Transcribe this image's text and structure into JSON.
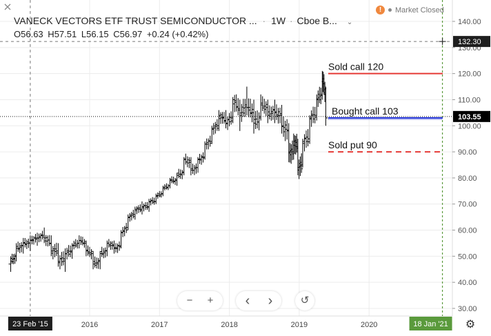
{
  "header": {
    "title": "VANECK VECTORS ETF TRUST SEMICONDUCTOR ...",
    "separator": "·",
    "interval": "1W",
    "exchange": "Cboe B...",
    "ohlc": {
      "o_label": "O",
      "o_value": "56.63",
      "h_label": "H",
      "h_value": "57.51",
      "l_label": "L",
      "l_value": "56.15",
      "c_label": "C",
      "c_value": "56.97",
      "change": "+0.24 (+0.42%)"
    }
  },
  "status": {
    "warning_icon": "!",
    "market": "Market Closed"
  },
  "annotations": [
    {
      "label": "Sold call 120",
      "level": 120,
      "color": "#e53935",
      "style": "solid"
    },
    {
      "label": "Bought call 103",
      "level": 103,
      "color": "#1e2fd6",
      "style": "solid"
    },
    {
      "label": "Sold put 90",
      "level": 90,
      "color": "#e53935",
      "style": "dashed"
    }
  ],
  "price_axis": {
    "ticks": [
      "140.00",
      "130.00",
      "120.00",
      "110.00",
      "100.00",
      "90.00",
      "80.00",
      "70.00",
      "60.00",
      "50.00",
      "40.00",
      "30.00"
    ],
    "crosshair_label": "132.30",
    "crosshair_value": 132.3,
    "last_price_label": "103.55",
    "last_price_value": 103.55
  },
  "time_axis": {
    "ticks": [
      "2016",
      "2017",
      "2018",
      "2019",
      "2020"
    ],
    "crosshair_date": "23 Feb '15",
    "projection_date": "18 Jan '21"
  },
  "colors": {
    "last_price_bg": "#000000",
    "crosshair_bg": "#1e1e1e",
    "projection_bg": "#5a9a3c",
    "bars": "#000000"
  },
  "nav": {
    "zoom_out": "−",
    "zoom_in": "+",
    "scroll_left": "‹",
    "scroll_right": "›",
    "reset": "↺"
  },
  "settings_icon": "⚙",
  "chart_data": {
    "type": "ohlc-bar",
    "symbol": "VANECK VECTORS ETF TRUST SEMICONDUCTOR",
    "interval": "1W",
    "ylim": [
      27,
      147
    ],
    "xlim": [
      2014.85,
      2021.18
    ],
    "x_crosshair": 2015.15,
    "x_projection": 2021.05,
    "series": [
      {
        "x": 2014.87,
        "o": 47,
        "h": 50,
        "l": 44,
        "c": 48
      },
      {
        "x": 2014.95,
        "o": 50,
        "h": 55,
        "l": 48,
        "c": 53
      },
      {
        "x": 2015.05,
        "o": 54,
        "h": 57,
        "l": 51,
        "c": 55
      },
      {
        "x": 2015.15,
        "o": 55,
        "h": 58,
        "l": 52,
        "c": 56
      },
      {
        "x": 2015.25,
        "o": 57,
        "h": 59,
        "l": 54,
        "c": 57
      },
      {
        "x": 2015.35,
        "o": 58,
        "h": 61,
        "l": 55,
        "c": 57
      },
      {
        "x": 2015.45,
        "o": 55,
        "h": 58,
        "l": 50,
        "c": 52
      },
      {
        "x": 2015.55,
        "o": 52,
        "h": 55,
        "l": 46,
        "c": 48
      },
      {
        "x": 2015.65,
        "o": 49,
        "h": 53,
        "l": 44,
        "c": 51
      },
      {
        "x": 2015.75,
        "o": 52,
        "h": 55,
        "l": 49,
        "c": 54
      },
      {
        "x": 2015.85,
        "o": 55,
        "h": 58,
        "l": 53,
        "c": 56
      },
      {
        "x": 2015.95,
        "o": 55,
        "h": 56,
        "l": 50,
        "c": 52
      },
      {
        "x": 2016.05,
        "o": 51,
        "h": 52,
        "l": 45,
        "c": 47
      },
      {
        "x": 2016.15,
        "o": 48,
        "h": 52,
        "l": 45,
        "c": 51
      },
      {
        "x": 2016.25,
        "o": 52,
        "h": 56,
        "l": 50,
        "c": 55
      },
      {
        "x": 2016.35,
        "o": 54,
        "h": 56,
        "l": 51,
        "c": 53
      },
      {
        "x": 2016.45,
        "o": 54,
        "h": 60,
        "l": 53,
        "c": 59
      },
      {
        "x": 2016.55,
        "o": 61,
        "h": 66,
        "l": 60,
        "c": 65
      },
      {
        "x": 2016.65,
        "o": 66,
        "h": 69,
        "l": 64,
        "c": 68
      },
      {
        "x": 2016.75,
        "o": 68,
        "h": 71,
        "l": 66,
        "c": 69
      },
      {
        "x": 2016.85,
        "o": 69,
        "h": 72,
        "l": 67,
        "c": 71
      },
      {
        "x": 2016.95,
        "o": 71,
        "h": 74,
        "l": 70,
        "c": 73
      },
      {
        "x": 2017.05,
        "o": 74,
        "h": 77,
        "l": 73,
        "c": 76
      },
      {
        "x": 2017.15,
        "o": 77,
        "h": 80,
        "l": 76,
        "c": 79
      },
      {
        "x": 2017.25,
        "o": 79,
        "h": 82,
        "l": 77,
        "c": 81
      },
      {
        "x": 2017.35,
        "o": 82,
        "h": 88,
        "l": 81,
        "c": 87
      },
      {
        "x": 2017.45,
        "o": 86,
        "h": 88,
        "l": 81,
        "c": 83
      },
      {
        "x": 2017.55,
        "o": 84,
        "h": 88,
        "l": 82,
        "c": 87
      },
      {
        "x": 2017.65,
        "o": 88,
        "h": 94,
        "l": 87,
        "c": 93
      },
      {
        "x": 2017.75,
        "o": 94,
        "h": 100,
        "l": 93,
        "c": 99
      },
      {
        "x": 2017.85,
        "o": 100,
        "h": 106,
        "l": 98,
        "c": 104
      },
      {
        "x": 2017.95,
        "o": 102,
        "h": 106,
        "l": 99,
        "c": 101
      },
      {
        "x": 2018.05,
        "o": 103,
        "h": 111,
        "l": 101,
        "c": 110
      },
      {
        "x": 2018.15,
        "o": 106,
        "h": 110,
        "l": 98,
        "c": 104
      },
      {
        "x": 2018.25,
        "o": 108,
        "h": 115,
        "l": 104,
        "c": 107
      },
      {
        "x": 2018.35,
        "o": 105,
        "h": 110,
        "l": 97,
        "c": 101
      },
      {
        "x": 2018.45,
        "o": 103,
        "h": 112,
        "l": 102,
        "c": 108
      },
      {
        "x": 2018.55,
        "o": 107,
        "h": 110,
        "l": 101,
        "c": 104
      },
      {
        "x": 2018.65,
        "o": 106,
        "h": 110,
        "l": 101,
        "c": 105
      },
      {
        "x": 2018.75,
        "o": 104,
        "h": 108,
        "l": 97,
        "c": 100
      },
      {
        "x": 2018.85,
        "o": 98,
        "h": 101,
        "l": 86,
        "c": 90
      },
      {
        "x": 2018.92,
        "o": 90,
        "h": 97,
        "l": 87,
        "c": 94
      },
      {
        "x": 2018.98,
        "o": 92,
        "h": 95,
        "l": 81,
        "c": 84
      },
      {
        "x": 2019.05,
        "o": 85,
        "h": 95,
        "l": 84,
        "c": 94
      },
      {
        "x": 2019.15,
        "o": 95,
        "h": 104,
        "l": 93,
        "c": 103
      },
      {
        "x": 2019.25,
        "o": 104,
        "h": 112,
        "l": 102,
        "c": 110
      },
      {
        "x": 2019.33,
        "o": 112,
        "h": 121,
        "l": 110,
        "c": 118
      },
      {
        "x": 2019.38,
        "o": 112,
        "h": 115,
        "l": 100,
        "c": 103
      }
    ]
  }
}
